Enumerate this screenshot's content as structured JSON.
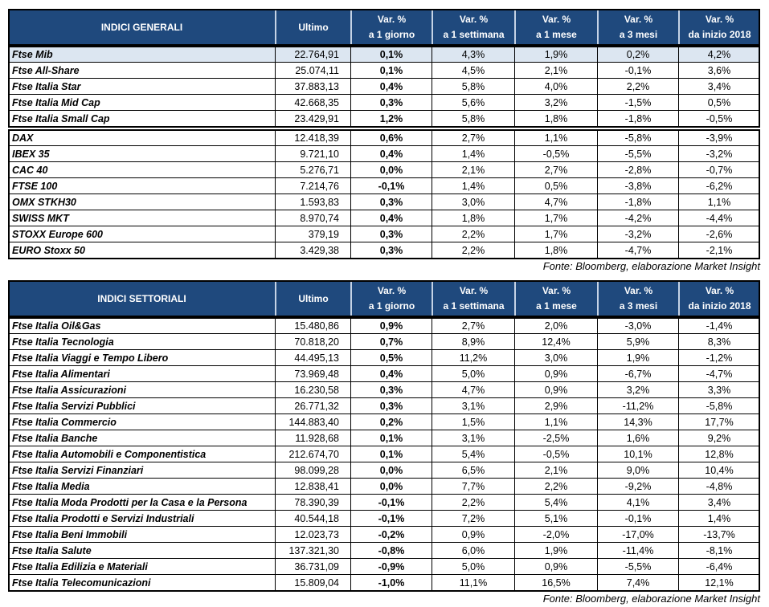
{
  "tables": [
    {
      "header": [
        [
          "INDICI GENERALI"
        ],
        [
          "Ultimo"
        ],
        [
          "Var. %",
          "a 1 giorno"
        ],
        [
          "Var. %",
          "a 1 settimana"
        ],
        [
          "Var. %",
          "a 1 mese"
        ],
        [
          "Var. %",
          "a 3 mesi"
        ],
        [
          "Var. %",
          "da inizio 2018"
        ]
      ],
      "groups": [
        [
          [
            "Ftse Mib",
            "22.764,91",
            "0,1%",
            "4,3%",
            "1,9%",
            "0,2%",
            "4,2%"
          ],
          [
            "Ftse All-Share",
            "25.074,11",
            "0,1%",
            "4,5%",
            "2,1%",
            "-0,1%",
            "3,6%"
          ],
          [
            "Ftse Italia Star",
            "37.883,13",
            "0,4%",
            "5,8%",
            "4,0%",
            "2,2%",
            "3,4%"
          ],
          [
            "Ftse Italia Mid Cap",
            "42.668,35",
            "0,3%",
            "5,6%",
            "3,2%",
            "-1,5%",
            "0,5%"
          ],
          [
            "Ftse Italia Small Cap",
            "23.429,91",
            "1,2%",
            "5,8%",
            "1,8%",
            "-1,8%",
            "-0,5%"
          ]
        ],
        [
          [
            "DAX",
            "12.418,39",
            "0,6%",
            "2,7%",
            "1,1%",
            "-5,8%",
            "-3,9%"
          ],
          [
            "IBEX 35",
            "9.721,10",
            "0,4%",
            "1,4%",
            "-0,5%",
            "-5,5%",
            "-3,2%"
          ],
          [
            "CAC 40",
            "5.276,71",
            "0,0%",
            "2,1%",
            "2,7%",
            "-2,8%",
            "-0,7%"
          ],
          [
            "FTSE 100",
            "7.214,76",
            "-0,1%",
            "1,4%",
            "0,5%",
            "-3,8%",
            "-6,2%"
          ],
          [
            "OMX STKH30",
            "1.593,83",
            "0,3%",
            "3,0%",
            "4,7%",
            "-1,8%",
            "1,1%"
          ],
          [
            "SWISS MKT",
            "8.970,74",
            "0,4%",
            "1,8%",
            "1,7%",
            "-4,2%",
            "-4,4%"
          ],
          [
            "STOXX Europe 600",
            "379,19",
            "0,3%",
            "2,2%",
            "1,7%",
            "-3,2%",
            "-2,6%"
          ],
          [
            "EURO Stoxx 50",
            "3.429,38",
            "0,3%",
            "2,2%",
            "1,8%",
            "-4,7%",
            "-2,1%"
          ]
        ]
      ],
      "source": "Fonte: Bloomberg, elaborazione Market Insight"
    },
    {
      "header": [
        [
          "INDICI SETTORIALI"
        ],
        [
          "Ultimo"
        ],
        [
          "Var. %",
          "a 1 giorno"
        ],
        [
          "Var. %",
          "a 1 settimana"
        ],
        [
          "Var. %",
          "a 1 mese"
        ],
        [
          "Var. %",
          "a 3 mesi"
        ],
        [
          "Var. %",
          "da inizio 2018"
        ]
      ],
      "groups": [
        [
          [
            "Ftse Italia Oil&Gas",
            "15.480,86",
            "0,9%",
            "2,7%",
            "2,0%",
            "-3,0%",
            "-1,4%"
          ],
          [
            "Ftse Italia Tecnologia",
            "70.818,20",
            "0,7%",
            "8,9%",
            "12,4%",
            "5,9%",
            "8,3%"
          ],
          [
            "Ftse Italia Viaggi e Tempo Libero",
            "44.495,13",
            "0,5%",
            "11,2%",
            "3,0%",
            "1,9%",
            "-1,2%"
          ],
          [
            "Ftse Italia Alimentari",
            "73.969,48",
            "0,4%",
            "5,0%",
            "0,9%",
            "-6,7%",
            "-4,7%"
          ],
          [
            "Ftse Italia Assicurazioni",
            "16.230,58",
            "0,3%",
            "4,7%",
            "0,9%",
            "3,2%",
            "3,3%"
          ],
          [
            "Ftse Italia Servizi Pubblici",
            "26.771,32",
            "0,3%",
            "3,1%",
            "2,9%",
            "-11,2%",
            "-5,8%"
          ],
          [
            "Ftse Italia Commercio",
            "144.883,40",
            "0,2%",
            "1,5%",
            "1,1%",
            "14,3%",
            "17,7%"
          ],
          [
            "Ftse Italia Banche",
            "11.928,68",
            "0,1%",
            "3,1%",
            "-2,5%",
            "1,6%",
            "9,2%"
          ],
          [
            "Ftse Italia Automobili e Componentistica",
            "212.674,70",
            "0,1%",
            "5,4%",
            "-0,5%",
            "10,1%",
            "12,8%"
          ],
          [
            "Ftse Italia Servizi Finanziari",
            "98.099,28",
            "0,0%",
            "6,5%",
            "2,1%",
            "9,0%",
            "10,4%"
          ],
          [
            "Ftse Italia Media",
            "12.838,41",
            "0,0%",
            "7,7%",
            "2,2%",
            "-9,2%",
            "-4,8%"
          ],
          [
            "Ftse Italia Moda Prodotti per la Casa e la Persona",
            "78.390,39",
            "-0,1%",
            "2,2%",
            "5,4%",
            "4,1%",
            "3,4%"
          ],
          [
            "Ftse Italia Prodotti e Servizi Industriali",
            "40.544,18",
            "-0,1%",
            "7,2%",
            "5,1%",
            "-0,1%",
            "1,4%"
          ],
          [
            "Ftse Italia Beni Immobili",
            "12.023,73",
            "-0,2%",
            "0,9%",
            "-2,0%",
            "-17,0%",
            "-13,7%"
          ],
          [
            "Ftse Italia Salute",
            "137.321,30",
            "-0,8%",
            "6,0%",
            "1,9%",
            "-11,4%",
            "-8,1%"
          ],
          [
            "Ftse Italia Edilizia e Materiali",
            "36.731,09",
            "-0,9%",
            "5,0%",
            "0,9%",
            "-5,5%",
            "-6,4%"
          ],
          [
            "Ftse Italia Telecomunicazioni",
            "15.809,04",
            "-1,0%",
            "11,1%",
            "16,5%",
            "7,4%",
            "12,1%"
          ]
        ]
      ],
      "source": "Fonte: Bloomberg, elaborazione Market Insight"
    }
  ]
}
